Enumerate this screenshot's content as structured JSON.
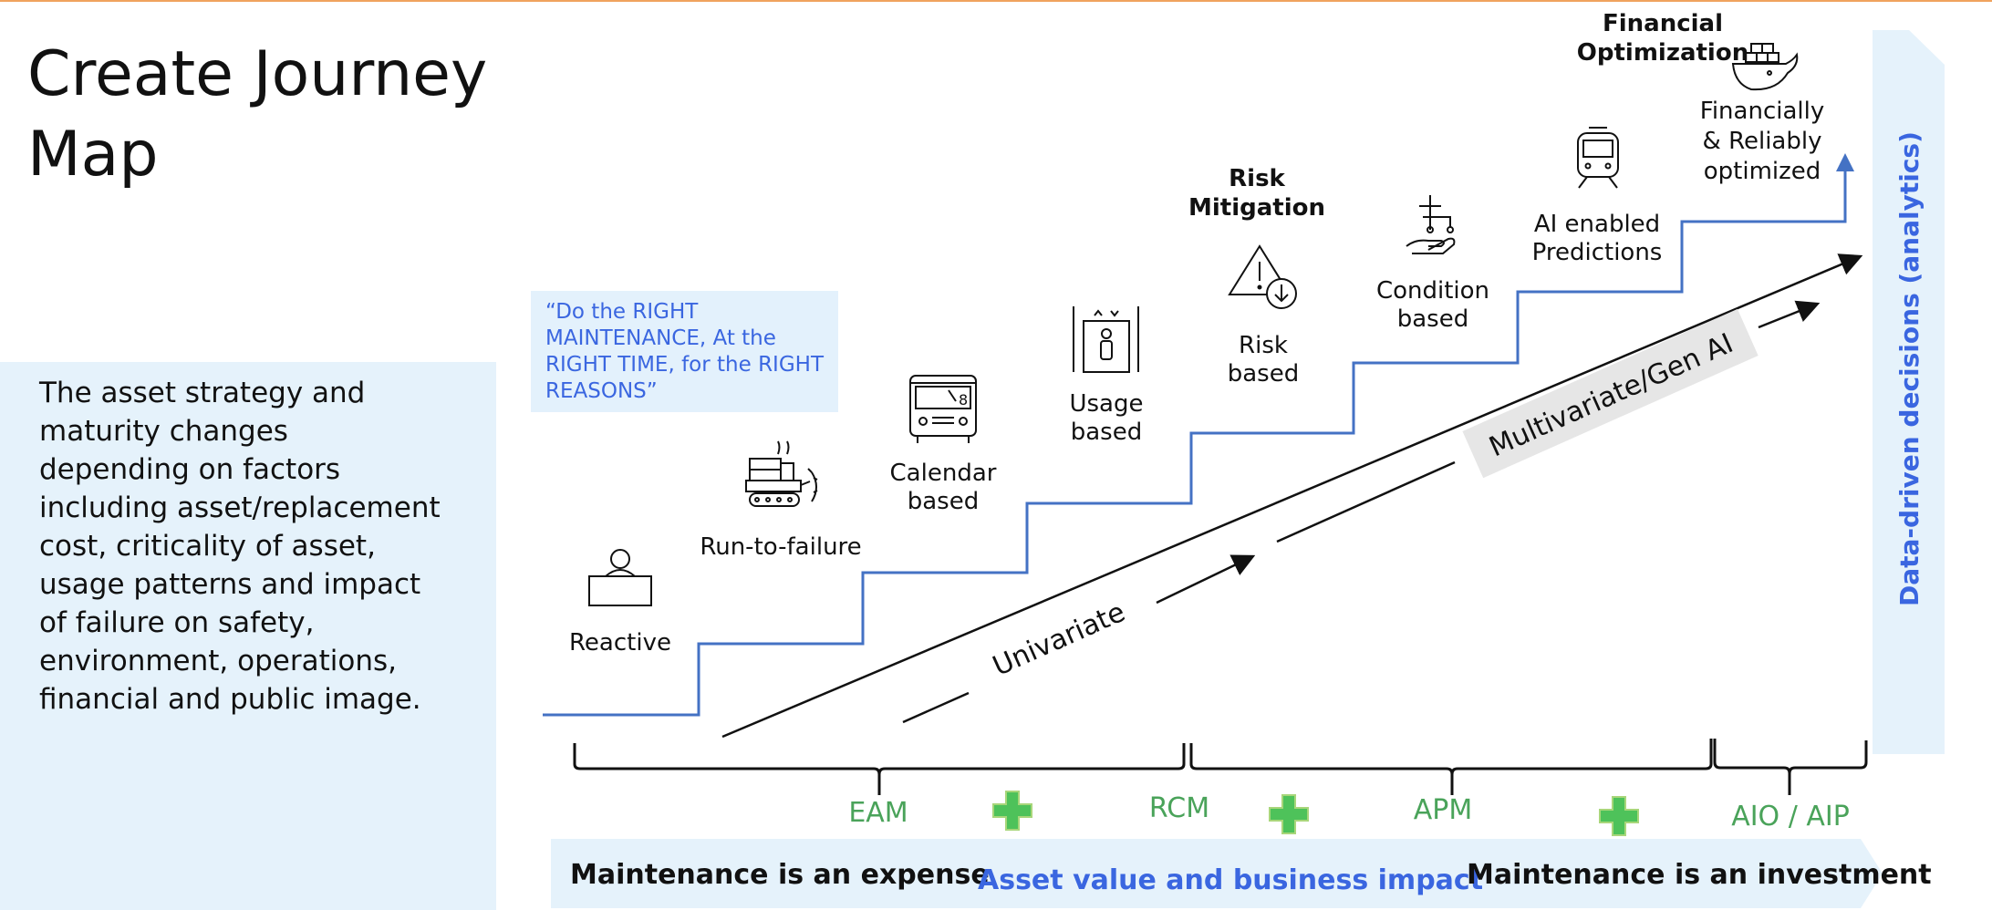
{
  "title": "Create Journey Map",
  "left_panel_text": "The asset strategy and maturity changes depending on factors including asset/replacement cost, criticality of asset, usage patterns and impact of failure on safety, environment, operations, financial and public image.",
  "quote": "“Do the RIGHT MAINTENANCE, At the RIGHT TIME, for the RIGHT REASONS”",
  "stages": {
    "reactive": "Reactive",
    "run_to_failure": "Run-to-failure",
    "calendar": [
      "Calendar",
      "based"
    ],
    "usage": [
      "Usage",
      "based"
    ],
    "risk": [
      "Risk",
      "based"
    ],
    "condition": [
      "Condition",
      "based"
    ],
    "ai": [
      "AI enabled",
      "Predictions"
    ],
    "financial": [
      "Financially",
      "& Reliably",
      "optimized"
    ]
  },
  "milestones": {
    "risk_mitigation": [
      "Risk",
      "Mitigation"
    ],
    "financial_optimization": [
      "Financial",
      "Optimization"
    ]
  },
  "trend_labels": {
    "univariate": "Univariate",
    "multivariate": "Multivariate/Gen AI"
  },
  "vertical_axis": "Data-driven decisions (analytics)",
  "brackets": [
    "EAM",
    "RCM",
    "APM",
    "AIO / AIP"
  ],
  "plus_symbol": "+",
  "banner": {
    "left": "Maintenance is an expense",
    "center": "Asset value and business impact",
    "right": "Maintenance is an investment"
  },
  "colors": {
    "accent_blue": "#3a66e0",
    "step_line": "#4472c4",
    "light_blue": "#e5f2fb",
    "green": "#4aa35a",
    "label_gray": "#e6e6e6"
  },
  "icons": [
    "person-desk-icon",
    "bulldozer-icon",
    "bus-icon",
    "elevator-icon",
    "warning-icon",
    "hand-circuit-icon",
    "train-icon",
    "cargo-ship-icon"
  ]
}
